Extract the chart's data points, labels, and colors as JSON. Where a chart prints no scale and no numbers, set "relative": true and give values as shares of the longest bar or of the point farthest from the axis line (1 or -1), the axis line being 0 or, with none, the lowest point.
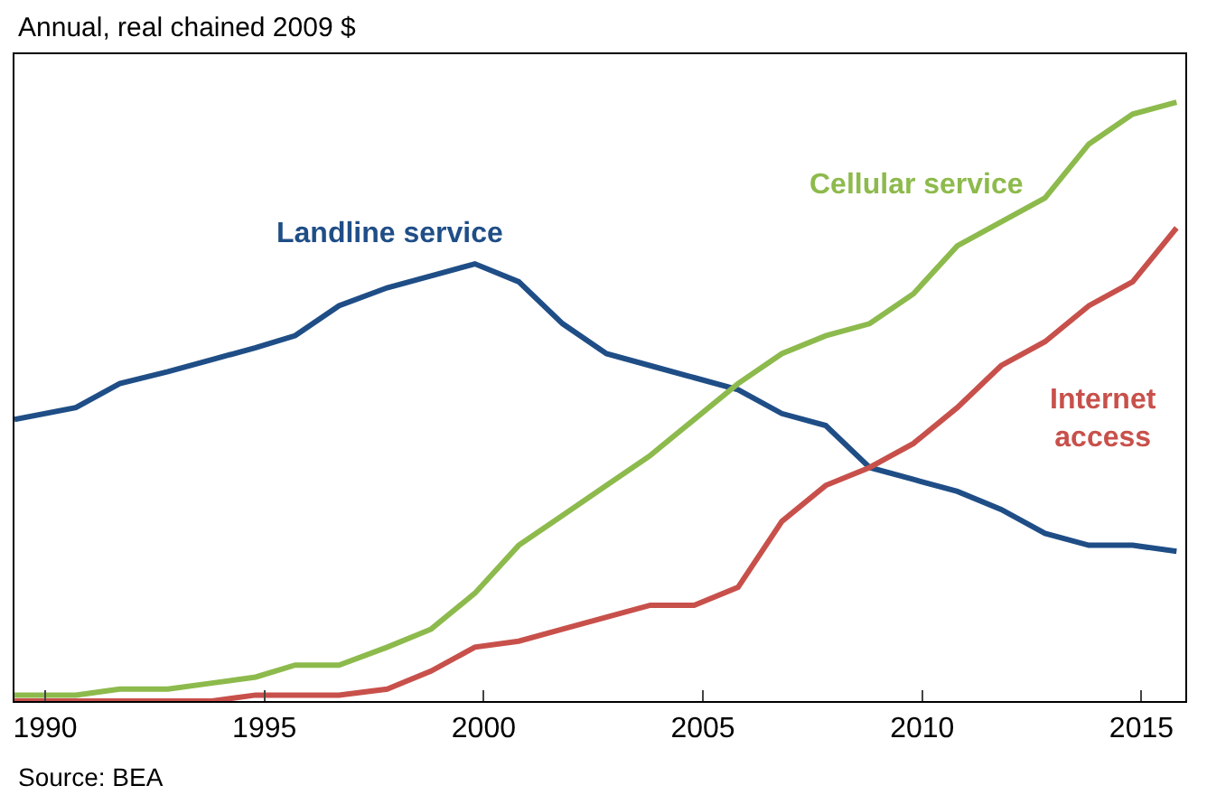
{
  "chart_data": {
    "type": "line",
    "subtitle": "Annual, real chained 2009 $",
    "relative": true,
    "legend": false,
    "marker": "none",
    "line_style": "solid",
    "x": [
      1989.3,
      1990.7,
      1991.7,
      1992.8,
      1993.8,
      1994.8,
      1995.7,
      1996.7,
      1997.8,
      1998.8,
      1999.8,
      2000.8,
      2001.8,
      2002.8,
      2003.8,
      2004.8,
      2005.8,
      2006.8,
      2007.8,
      2008.8,
      2009.8,
      2010.8,
      2011.8,
      2012.8,
      2013.8,
      2014.8,
      2015.8
    ],
    "xlim": [
      1989.3,
      2016.0
    ],
    "xticks": [
      1990,
      1995,
      2000,
      2005,
      2010,
      2015
    ],
    "series": [
      {
        "name": "Landline service",
        "color": "#1f4e87",
        "values": [
          0.47,
          0.49,
          0.53,
          0.55,
          0.57,
          0.59,
          0.61,
          0.66,
          0.69,
          0.71,
          0.73,
          0.7,
          0.63,
          0.58,
          0.56,
          0.54,
          0.52,
          0.48,
          0.46,
          0.39,
          0.37,
          0.35,
          0.32,
          0.28,
          0.26,
          0.26,
          0.25
        ]
      },
      {
        "name": "Cellular service",
        "color": "#8dba4c",
        "values": [
          0.01,
          0.01,
          0.02,
          0.02,
          0.03,
          0.04,
          0.06,
          0.06,
          0.09,
          0.12,
          0.18,
          0.26,
          0.31,
          0.36,
          0.41,
          0.47,
          0.53,
          0.58,
          0.61,
          0.63,
          0.68,
          0.76,
          0.8,
          0.84,
          0.93,
          0.98,
          1.0
        ]
      },
      {
        "name": "Internet access",
        "color": "#c8504b",
        "values": [
          0,
          0,
          0,
          0,
          0,
          0.01,
          0.01,
          0.01,
          0.02,
          0.05,
          0.09,
          0.1,
          0.12,
          0.14,
          0.16,
          0.16,
          0.19,
          0.3,
          0.36,
          0.39,
          0.43,
          0.49,
          0.56,
          0.6,
          0.66,
          0.7,
          0.79
        ]
      }
    ],
    "annotations": [
      "Source: BEA"
    ]
  }
}
